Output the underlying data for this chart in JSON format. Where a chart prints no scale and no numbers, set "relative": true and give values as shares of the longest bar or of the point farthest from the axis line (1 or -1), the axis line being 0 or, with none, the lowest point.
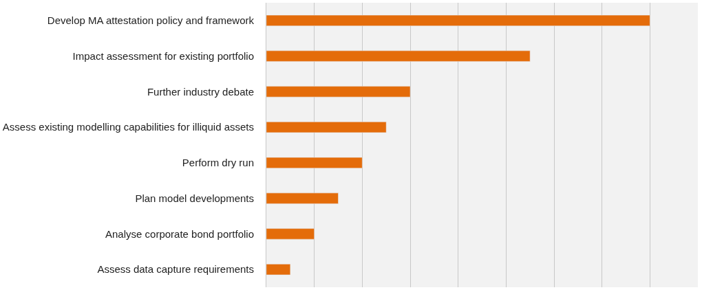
{
  "chart_data": {
    "type": "bar",
    "orientation": "horizontal",
    "relative": true,
    "grid": "x",
    "categories": [
      "Develop MA attestation policy and framework",
      "Impact assessment for existing portfolio",
      "Further industry debate",
      "Assess existing modelling capabilities for illiquid assets",
      "Perform dry run",
      "Plan model developments",
      "Analyse corporate bond portfolio",
      "Assess data capture requirements"
    ],
    "values": [
      1,
      0.6875,
      0.375,
      0.3125,
      0.25,
      0.1875,
      0.125,
      0.0625
    ],
    "color": "#e46c0a"
  }
}
